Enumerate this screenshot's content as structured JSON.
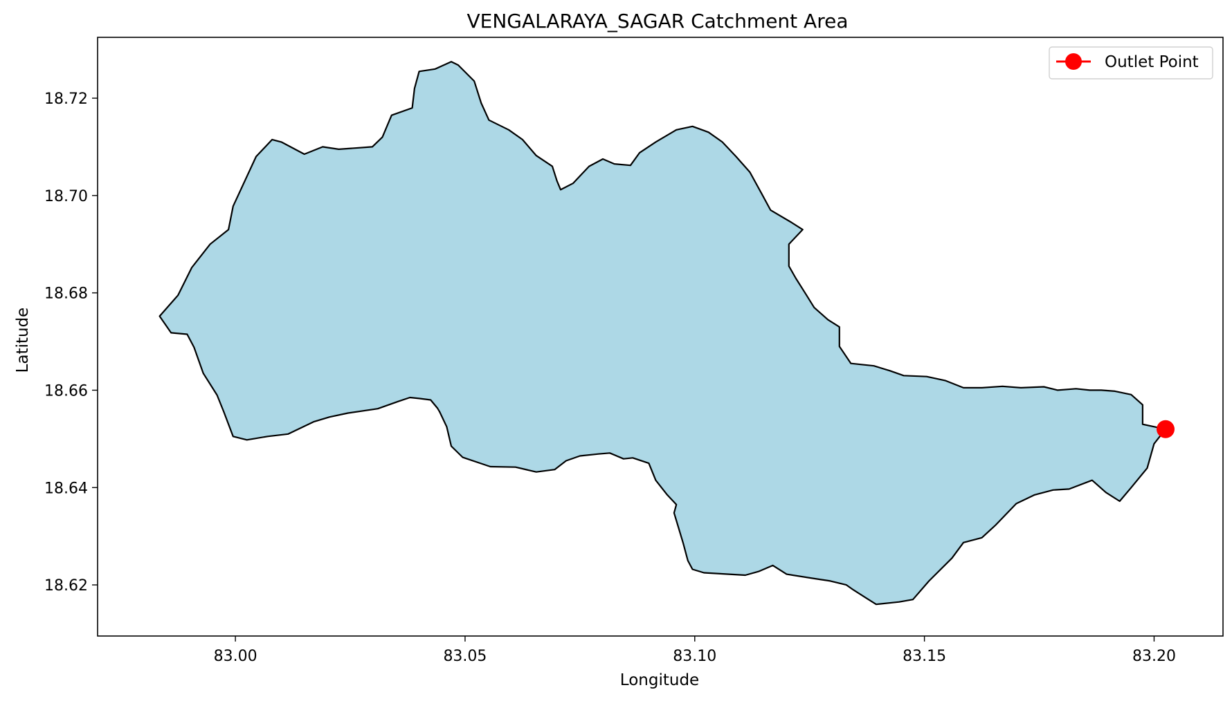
{
  "chart_data": {
    "type": "map",
    "title": "VENGALARAYA_SAGAR Catchment Area",
    "xlabel": "Longitude",
    "ylabel": "Latitude",
    "xlim": [
      82.97,
      83.215
    ],
    "ylim": [
      18.6095,
      18.7325
    ],
    "x_ticks": [
      83.0,
      83.05,
      83.1,
      83.15,
      83.2
    ],
    "x_tick_labels": [
      "83.00",
      "83.05",
      "83.10",
      "83.15",
      "83.20"
    ],
    "y_ticks": [
      18.62,
      18.64,
      18.66,
      18.68,
      18.7,
      18.72
    ],
    "y_tick_labels": [
      "18.62",
      "18.64",
      "18.66",
      "18.68",
      "18.70",
      "18.72"
    ],
    "grid": false,
    "legend": {
      "position": "top-right",
      "entries": [
        {
          "label": "Outlet Point",
          "marker": "circle",
          "color": "#ff0000"
        }
      ]
    },
    "catchment": {
      "fill_color": "#add8e6",
      "edge_color": "#000000",
      "boundary": [
        [
          82.9835,
          18.6752
        ],
        [
          82.9875,
          18.6795
        ],
        [
          82.9905,
          18.6852
        ],
        [
          82.9945,
          18.69
        ],
        [
          82.9985,
          18.693
        ],
        [
          82.9995,
          18.6978
        ],
        [
          83.0045,
          18.708
        ],
        [
          83.008,
          18.7115
        ],
        [
          83.01,
          18.711
        ],
        [
          83.015,
          18.7085
        ],
        [
          83.019,
          18.71
        ],
        [
          83.0225,
          18.7095
        ],
        [
          83.0298,
          18.71
        ],
        [
          83.032,
          18.712
        ],
        [
          83.034,
          18.7165
        ],
        [
          83.0385,
          18.718
        ],
        [
          83.039,
          18.722
        ],
        [
          83.04,
          18.7255
        ],
        [
          83.0435,
          18.726
        ],
        [
          83.047,
          18.7275
        ],
        [
          83.0485,
          18.7268
        ],
        [
          83.052,
          18.7235
        ],
        [
          83.0535,
          18.719
        ],
        [
          83.0552,
          18.7155
        ],
        [
          83.0595,
          18.7135
        ],
        [
          83.0625,
          18.7115
        ],
        [
          83.0655,
          18.7082
        ],
        [
          83.069,
          18.706
        ],
        [
          83.07,
          18.703
        ],
        [
          83.0708,
          18.7012
        ],
        [
          83.0735,
          18.7025
        ],
        [
          83.077,
          18.706
        ],
        [
          83.08,
          18.7075
        ],
        [
          83.0825,
          18.7065
        ],
        [
          83.086,
          18.7062
        ],
        [
          83.088,
          18.7088
        ],
        [
          83.0915,
          18.711
        ],
        [
          83.096,
          18.7135
        ],
        [
          83.0995,
          18.7142
        ],
        [
          83.103,
          18.713
        ],
        [
          83.106,
          18.711
        ],
        [
          83.109,
          18.708
        ],
        [
          83.112,
          18.7048
        ],
        [
          83.1145,
          18.7005
        ],
        [
          83.1165,
          18.697
        ],
        [
          83.121,
          18.6945
        ],
        [
          83.1235,
          18.693
        ],
        [
          83.1205,
          18.69
        ],
        [
          83.1205,
          18.6855
        ],
        [
          83.122,
          18.683
        ],
        [
          83.124,
          18.68
        ],
        [
          83.126,
          18.677
        ],
        [
          83.129,
          18.6745
        ],
        [
          83.1315,
          18.673
        ],
        [
          83.1315,
          18.669
        ],
        [
          83.134,
          18.6655
        ],
        [
          83.139,
          18.665
        ],
        [
          83.1425,
          18.664
        ],
        [
          83.1455,
          18.663
        ],
        [
          83.1505,
          18.6628
        ],
        [
          83.1545,
          18.662
        ],
        [
          83.1585,
          18.6605
        ],
        [
          83.1625,
          18.6605
        ],
        [
          83.167,
          18.6608
        ],
        [
          83.171,
          18.6605
        ],
        [
          83.176,
          18.6607
        ],
        [
          83.179,
          18.66
        ],
        [
          83.183,
          18.6603
        ],
        [
          83.186,
          18.66
        ],
        [
          83.1885,
          18.66
        ],
        [
          83.1915,
          18.6598
        ],
        [
          83.195,
          18.6591
        ],
        [
          83.1975,
          18.657
        ],
        [
          83.1975,
          18.653
        ],
        [
          83.2025,
          18.652
        ],
        [
          83.2,
          18.649
        ],
        [
          83.1985,
          18.644
        ],
        [
          83.195,
          18.64
        ],
        [
          83.1925,
          18.6372
        ],
        [
          83.1895,
          18.639
        ],
        [
          83.1865,
          18.6415
        ],
        [
          83.1815,
          18.6397
        ],
        [
          83.178,
          18.6395
        ],
        [
          83.174,
          18.6385
        ],
        [
          83.17,
          18.6367
        ],
        [
          83.1655,
          18.6323
        ],
        [
          83.1625,
          18.6297
        ],
        [
          83.1585,
          18.6287
        ],
        [
          83.156,
          18.6255
        ],
        [
          83.151,
          18.6208
        ],
        [
          83.1475,
          18.617
        ],
        [
          83.1445,
          18.6165
        ],
        [
          83.1395,
          18.616
        ],
        [
          83.137,
          18.6175
        ],
        [
          83.1345,
          18.619
        ],
        [
          83.133,
          18.62
        ],
        [
          83.1295,
          18.6208
        ],
        [
          83.126,
          18.6213
        ],
        [
          83.12,
          18.6222
        ],
        [
          83.117,
          18.624
        ],
        [
          83.114,
          18.6228
        ],
        [
          83.111,
          18.622
        ],
        [
          83.102,
          18.6225
        ],
        [
          83.0995,
          18.6232
        ],
        [
          83.0985,
          18.625
        ],
        [
          83.0975,
          18.6285
        ],
        [
          83.0955,
          18.6348
        ],
        [
          83.096,
          18.6365
        ],
        [
          83.094,
          18.6385
        ],
        [
          83.0915,
          18.6415
        ],
        [
          83.09,
          18.645
        ],
        [
          83.0865,
          18.6461
        ],
        [
          83.0845,
          18.6459
        ],
        [
          83.0815,
          18.6471
        ],
        [
          83.079,
          18.6469
        ],
        [
          83.075,
          18.6465
        ],
        [
          83.072,
          18.6455
        ],
        [
          83.0695,
          18.6437
        ],
        [
          83.0655,
          18.6432
        ],
        [
          83.061,
          18.6442
        ],
        [
          83.0555,
          18.6443
        ],
        [
          83.0495,
          18.6462
        ],
        [
          83.047,
          18.6485
        ],
        [
          83.046,
          18.6525
        ],
        [
          83.0445,
          18.6555
        ],
        [
          83.044,
          18.6563
        ],
        [
          83.0425,
          18.658
        ],
        [
          83.04,
          18.6583
        ],
        [
          83.038,
          18.6585
        ],
        [
          83.0355,
          18.6577
        ],
        [
          83.031,
          18.6562
        ],
        [
          83.0245,
          18.6553
        ],
        [
          83.0205,
          18.6545
        ],
        [
          83.017,
          18.6535
        ],
        [
          83.0115,
          18.651
        ],
        [
          83.007,
          18.6505
        ],
        [
          83.0025,
          18.6498
        ],
        [
          82.9995,
          18.6505
        ],
        [
          82.9975,
          18.6555
        ],
        [
          82.996,
          18.659
        ],
        [
          82.993,
          18.6635
        ],
        [
          82.991,
          18.6688
        ],
        [
          82.9895,
          18.6715
        ],
        [
          82.986,
          18.6718
        ],
        [
          82.9835,
          18.6752
        ]
      ]
    },
    "outlet_point": {
      "label": "Outlet Point",
      "x": 83.2025,
      "y": 18.652,
      "color": "#ff0000"
    }
  }
}
